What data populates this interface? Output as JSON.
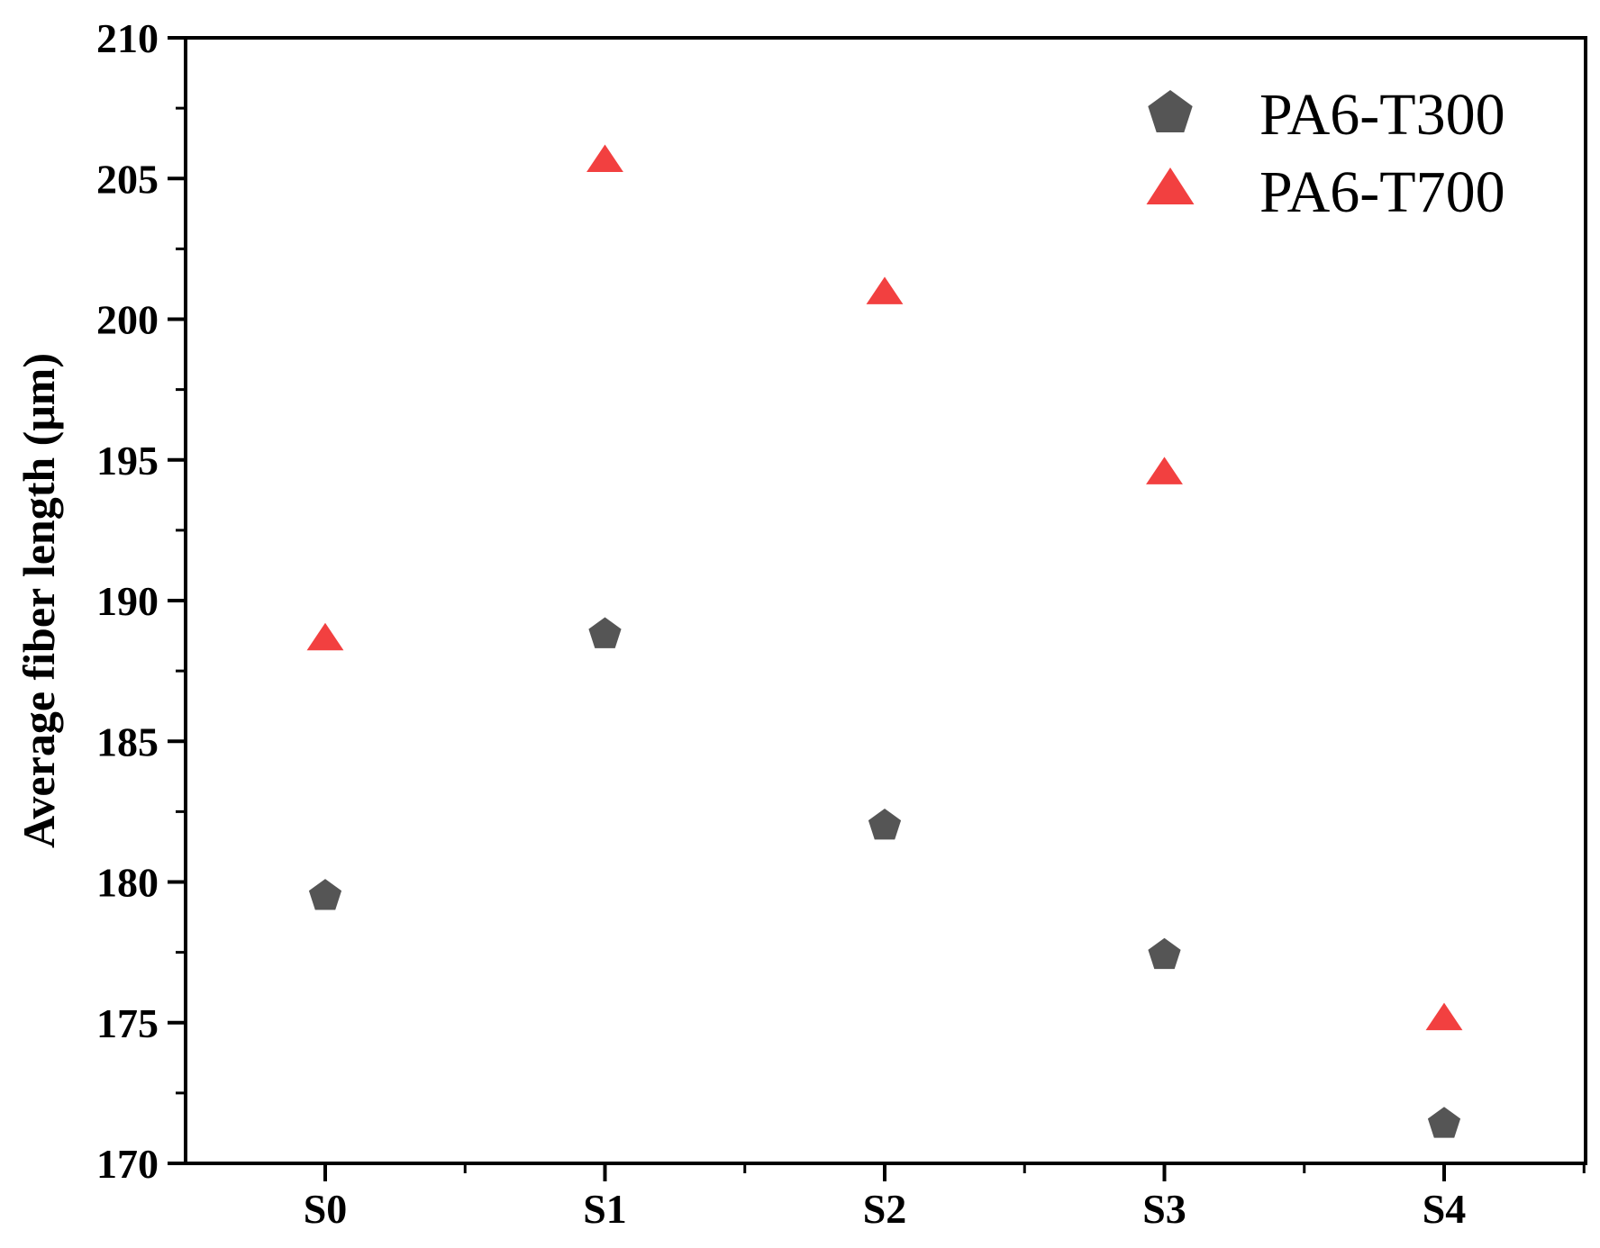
{
  "chart_data": {
    "type": "scatter",
    "categories": [
      "S0",
      "S1",
      "S2",
      "S3",
      "S4"
    ],
    "series": [
      {
        "name": "PA6-T300",
        "marker": "pentagon",
        "color": "#555555",
        "values": [
          179.5,
          188.8,
          182.0,
          177.4,
          171.4
        ]
      },
      {
        "name": "PA6-T700",
        "marker": "triangle",
        "color": "#f24040",
        "values": [
          188.6,
          205.6,
          200.9,
          194.5,
          175.1
        ]
      }
    ],
    "ylabel": "Average fiber length (μm)",
    "xlabel": "",
    "ylim": [
      170,
      210
    ],
    "yticks": [
      170,
      175,
      180,
      185,
      190,
      195,
      200,
      205,
      210
    ],
    "yticks_minor_step": 2.5,
    "grid": false,
    "legend": "top-right"
  }
}
